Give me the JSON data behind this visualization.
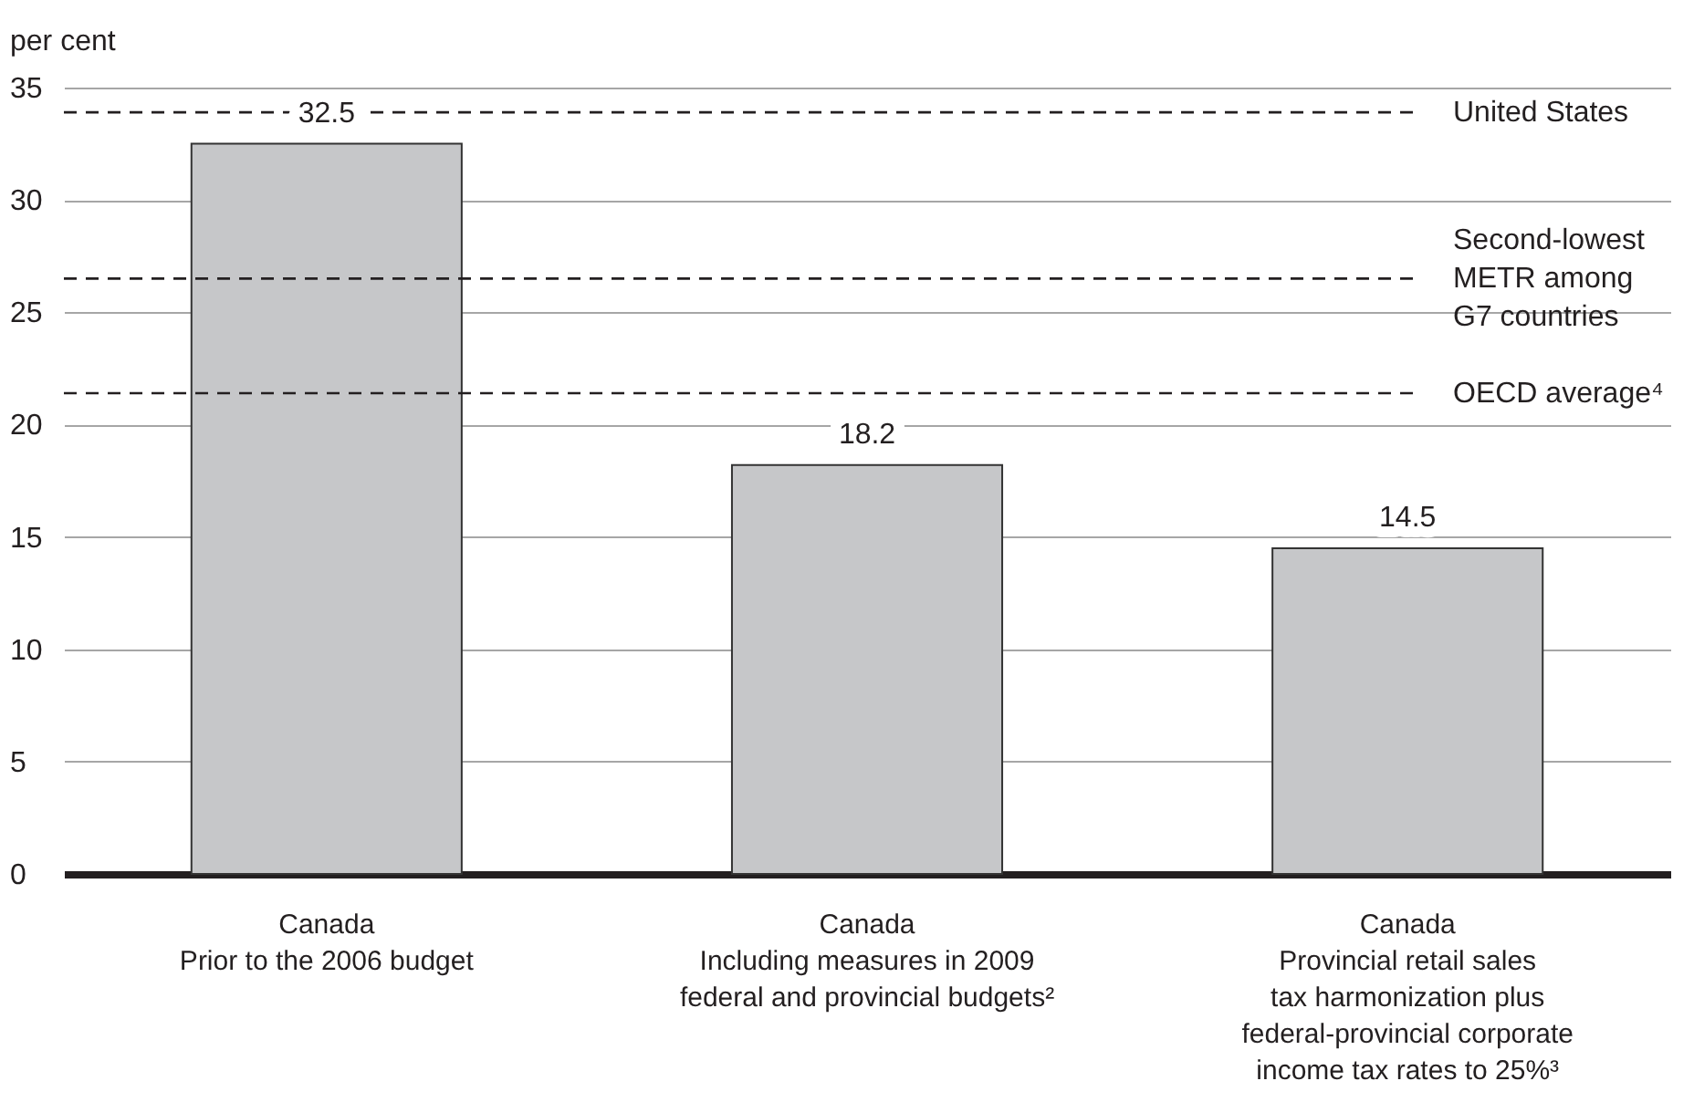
{
  "chart_data": {
    "type": "bar",
    "ylabel": "per cent",
    "categories": [
      "Canada\nPrior to the 2006 budget",
      "Canada\nIncluding measures in 2009\nfederal and provincial budgets²",
      "Canada\nProvincial retail sales\ntax harmonization plus\nfederal-provincial corporate\nincome tax rates to 25%³"
    ],
    "values": [
      32.5,
      18.2,
      14.5
    ],
    "color": "#c6c7c9",
    "ylim": [
      0,
      35
    ],
    "yticks": [
      0,
      5,
      10,
      15,
      20,
      25,
      30,
      35
    ],
    "grid": "y",
    "data_labels": true,
    "ref_lines": [
      {
        "axis": "y",
        "value": 33.9,
        "label": "United States",
        "color": "#231f20",
        "line_style": "dashed"
      },
      {
        "axis": "y",
        "value": 26.5,
        "label": "Second-lowest\nMETR among\nG7 countries",
        "color": "#231f20",
        "line_style": "dashed"
      },
      {
        "axis": "y",
        "value": 21.4,
        "label": "OECD average⁴",
        "color": "#231f20",
        "line_style": "dashed"
      }
    ]
  }
}
